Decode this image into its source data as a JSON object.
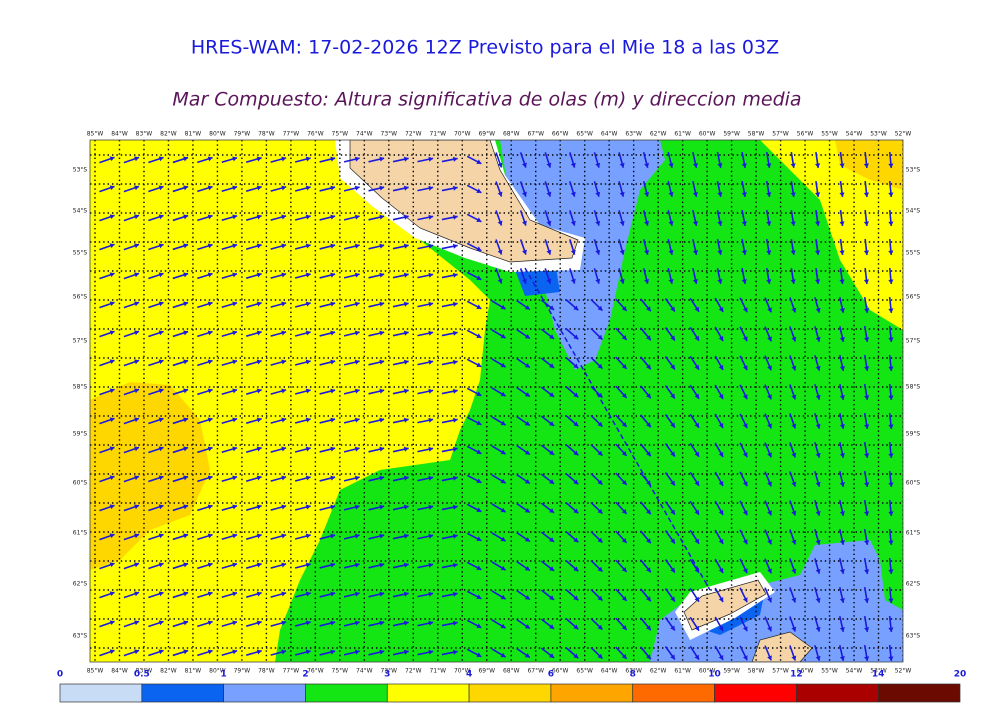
{
  "header": {
    "title": "HRES-WAM: 17-02-2026 12Z Previsto para el Mie 18 a las 03Z",
    "subtitle": "Mar Compuesto: Altura significativa de olas (m) y direccion media"
  },
  "map": {
    "longitudes": [
      "85°W",
      "84°W",
      "83°W",
      "82°W",
      "81°W",
      "80°W",
      "79°W",
      "78°W",
      "77°W",
      "76°W",
      "75°W",
      "74°W",
      "73°W",
      "72°W",
      "71°W",
      "70°W",
      "69°W",
      "68°W",
      "67°W",
      "66°W",
      "65°W",
      "64°W",
      "63°W",
      "62°W",
      "61°W",
      "60°W",
      "59°W",
      "58°W",
      "57°W",
      "56°W",
      "55°W",
      "54°W",
      "53°W",
      "52°W"
    ],
    "latitudes": [
      "53°S",
      "54°S",
      "55°S",
      "56°S",
      "57°S",
      "58°S",
      "59°S",
      "60°S",
      "61°S",
      "62°S",
      "63°S"
    ]
  },
  "colorbar": {
    "labels": [
      "0",
      "0.5",
      "1",
      "2",
      "3",
      "4",
      "6",
      "8",
      "10",
      "12",
      "14",
      "20"
    ],
    "colors": [
      "#c8dcf5",
      "#0a64f0",
      "#78a0ff",
      "#14e614",
      "#ffff00",
      "#ffd700",
      "#ffa500",
      "#ff6a00",
      "#ff0000",
      "#aa0000",
      "#6a0a00",
      "#333333"
    ]
  }
}
